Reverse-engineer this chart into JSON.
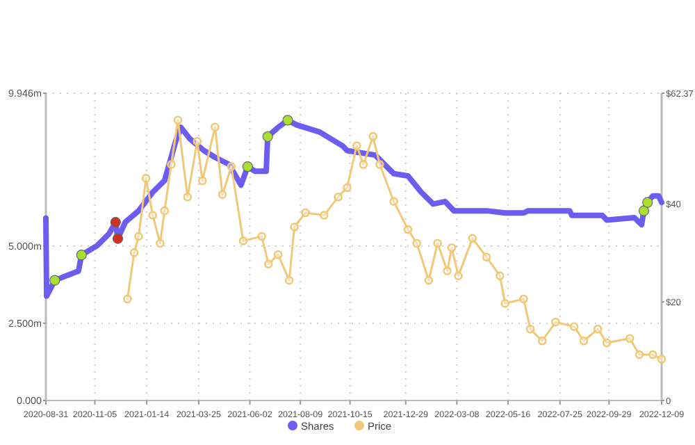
{
  "chart_data": {
    "type": "line",
    "legend": "bottom",
    "grid": true,
    "xlim": [
      "2020-08-31",
      "2022-12-09"
    ],
    "xticks": [
      "2020-08-31",
      "2020-11-05",
      "2021-01-14",
      "2021-03-25",
      "2021-06-02",
      "2021-08-09",
      "2021-10-15",
      "2021-12-29",
      "2022-03-08",
      "2022-05-16",
      "2022-07-25",
      "2022-09-29",
      "2022-12-09"
    ],
    "ylim": [
      0,
      9.946
    ],
    "yticks": [
      {
        "value": 0,
        "label": "0.000"
      },
      {
        "value": 2.5,
        "label": "2.500m"
      },
      {
        "value": 5,
        "label": "5.000m"
      },
      {
        "value": 9.946,
        "label": "9.946m"
      }
    ],
    "y2lim": [
      0,
      62.37
    ],
    "y2ticks": [
      {
        "value": 0,
        "label": "0"
      },
      {
        "value": 20,
        "label": "$20"
      },
      {
        "value": 40,
        "label": "$40"
      },
      {
        "value": 62.37,
        "label": "$62.37"
      }
    ],
    "series": [
      {
        "name": "Shares",
        "color": "#6d5cf0",
        "marker": "none",
        "x": [
          "2020-08-31",
          "2020-09-01",
          "2020-09-12",
          "2020-10-14",
          "2020-10-18",
          "2020-11-08",
          "2020-11-24",
          "2020-12-03",
          "2020-12-06",
          "2020-12-16",
          "2021-01-03",
          "2021-01-22",
          "2021-02-07",
          "2021-02-22",
          "2021-03-01",
          "2021-03-13",
          "2021-04-01",
          "2021-04-16",
          "2021-05-05",
          "2021-05-21",
          "2021-05-30",
          "2021-06-09",
          "2021-06-24",
          "2021-06-26",
          "2021-07-10",
          "2021-07-23",
          "2021-08-04",
          "2021-09-04",
          "2021-10-05",
          "2021-10-11",
          "2021-11-18",
          "2021-12-13",
          "2022-01-01",
          "2022-01-19",
          "2022-02-04",
          "2022-02-20",
          "2022-03-04",
          "2022-04-17",
          "2022-05-12",
          "2022-06-06",
          "2022-06-12",
          "2022-08-07",
          "2022-08-10",
          "2022-09-20",
          "2022-09-26",
          "2022-11-02",
          "2022-11-12",
          "2022-11-15",
          "2022-11-20",
          "2022-11-27",
          "2022-12-05",
          "2022-12-09"
        ],
        "values": [
          5.9,
          3.38,
          3.89,
          4.19,
          4.71,
          5.01,
          5.39,
          5.77,
          5.24,
          5.77,
          6.14,
          6.74,
          7.12,
          8.39,
          8.84,
          8.47,
          8.09,
          7.87,
          7.64,
          6.97,
          7.57,
          7.42,
          7.42,
          8.54,
          8.84,
          9.07,
          8.92,
          8.69,
          8.24,
          8.09,
          7.94,
          7.34,
          7.27,
          6.74,
          6.36,
          6.44,
          6.14,
          6.14,
          6.07,
          6.07,
          6.14,
          6.14,
          5.99,
          5.99,
          5.84,
          5.92,
          5.69,
          6.14,
          6.41,
          6.62,
          6.62,
          6.41
        ]
      },
      {
        "name": "Price",
        "color": "#f0c878",
        "axis": "y2",
        "marker": "circle",
        "x": [
          "2020-12-19",
          "2020-12-28",
          "2021-01-03",
          "2021-01-13",
          "2021-01-22",
          "2021-02-01",
          "2021-02-07",
          "2021-02-16",
          "2021-02-25",
          "2021-03-10",
          "2021-03-23",
          "2021-03-30",
          "2021-04-16",
          "2021-04-26",
          "2021-05-08",
          "2021-05-24",
          "2021-06-18",
          "2021-06-27",
          "2021-07-10",
          "2021-07-25",
          "2021-08-01",
          "2021-08-16",
          "2021-09-10",
          "2021-09-29",
          "2021-10-11",
          "2021-10-24",
          "2021-11-02",
          "2021-11-15",
          "2021-11-24",
          "2021-12-13",
          "2022-01-01",
          "2022-01-13",
          "2022-01-29",
          "2022-02-10",
          "2022-02-23",
          "2022-03-01",
          "2022-03-10",
          "2022-03-29",
          "2022-04-17",
          "2022-05-05",
          "2022-05-12",
          "2022-06-06",
          "2022-06-15",
          "2022-07-01",
          "2022-07-19",
          "2022-08-13",
          "2022-08-26",
          "2022-09-14",
          "2022-09-26",
          "2022-10-27",
          "2022-11-09",
          "2022-11-27",
          "2022-12-09"
        ],
        "values": [
          20.6,
          30.0,
          33.3,
          45.1,
          37.6,
          31.9,
          38.5,
          47.9,
          56.9,
          41.3,
          52.6,
          44.6,
          55.5,
          41.8,
          47.5,
          32.4,
          33.3,
          27.7,
          29.6,
          24.4,
          35.2,
          38.1,
          37.6,
          41.3,
          43.2,
          51.7,
          47.9,
          53.6,
          47.9,
          40.4,
          34.7,
          31.9,
          24.4,
          31.9,
          26.3,
          31.0,
          25.3,
          32.9,
          29.1,
          25.3,
          19.7,
          20.6,
          14.5,
          12.1,
          15.9,
          15.0,
          12.1,
          14.5,
          11.7,
          12.6,
          9.3,
          9.3,
          8.4
        ]
      },
      {
        "type": "scatter",
        "color": "#a8e030",
        "x": [
          "2020-09-12",
          "2020-10-18",
          "2021-05-30",
          "2021-06-26",
          "2021-07-23",
          "2022-11-15",
          "2022-11-20"
        ],
        "values": [
          3.89,
          4.71,
          7.57,
          8.54,
          9.07,
          6.14,
          6.41
        ]
      },
      {
        "type": "scatter",
        "color": "#d03020",
        "x": [
          "2020-12-03",
          "2020-12-06"
        ],
        "values": [
          5.77,
          5.24
        ]
      }
    ]
  }
}
